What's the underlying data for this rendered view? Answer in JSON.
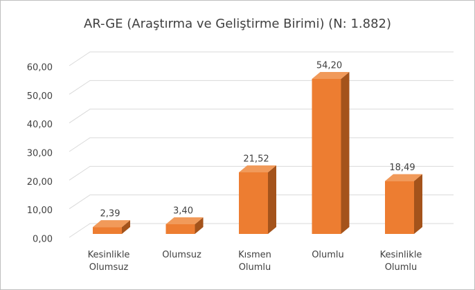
{
  "chart_data": {
    "type": "bar3d",
    "title": "AR-GE (Araştırma ve Geliştirme Birimi) (N: 1.882)",
    "categories": [
      "Kesinlikle Olumsuz",
      "Olumsuz",
      "Kısmen Olumlu",
      "Olumlu",
      "Kesinlikle Olumlu"
    ],
    "values": [
      2.39,
      3.4,
      21.52,
      54.2,
      18.49
    ],
    "value_labels": [
      "2,39",
      "3,40",
      "21,52",
      "54,20",
      "18,49"
    ],
    "color": "#ed7d31",
    "ylim": [
      0,
      60
    ],
    "yticks": [
      {
        "value": 0,
        "label": "0,00"
      },
      {
        "value": 10,
        "label": "10,00"
      },
      {
        "value": 20,
        "label": "20,00"
      },
      {
        "value": 30,
        "label": "30,00"
      },
      {
        "value": 40,
        "label": "40,00"
      },
      {
        "value": 50,
        "label": "50,00"
      },
      {
        "value": 60,
        "label": "60,00"
      }
    ],
    "grid": true
  }
}
